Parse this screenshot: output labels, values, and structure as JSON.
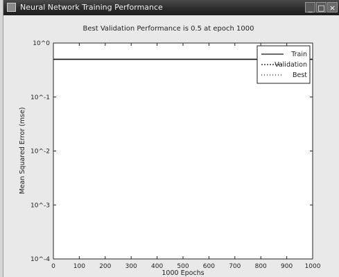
{
  "window": {
    "title": "Neural Network Training Performance",
    "min_glyph": "_",
    "max_glyph": "□",
    "close_glyph": "×",
    "icon": "matlab-figure-icon"
  },
  "chart_data": {
    "type": "line",
    "title": "Best Validation Performance is 0.5 at epoch 1000",
    "xlabel": "1000 Epochs",
    "ylabel": "Mean Squared Error (mse)",
    "xlim": [
      0,
      1000
    ],
    "x_ticks": [
      0,
      100,
      200,
      300,
      400,
      500,
      600,
      700,
      800,
      900,
      1000
    ],
    "x_tick_labels": [
      "0",
      "100",
      "200",
      "300",
      "400",
      "500",
      "600",
      "700",
      "800",
      "900",
      "1000"
    ],
    "yscale": "log",
    "ylim": [
      0.0001,
      1
    ],
    "y_ticks": [
      0.0001,
      0.001,
      0.01,
      0.1,
      1
    ],
    "y_tick_labels": [
      "10^-4",
      "10^-3",
      "10^-2",
      "10^-1",
      "10^0"
    ],
    "legend": [
      "Train",
      "Validation",
      "Best"
    ],
    "legend_position": "top-right",
    "series": [
      {
        "name": "Train",
        "x": [
          0,
          1000
        ],
        "values": [
          0.5,
          0.5
        ]
      }
    ]
  }
}
